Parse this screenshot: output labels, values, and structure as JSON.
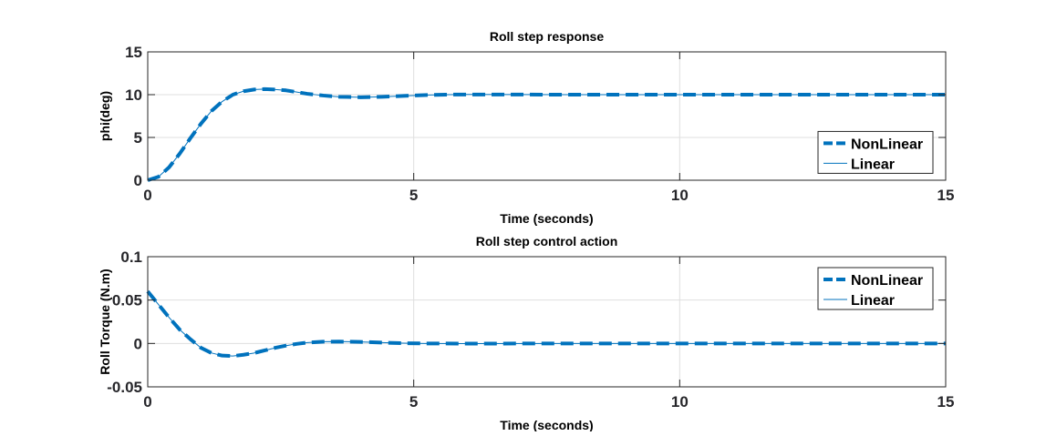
{
  "colors": {
    "series": "#0072bd",
    "axis": "#262626",
    "grid": "#dfdfdf"
  },
  "chart_data": [
    {
      "type": "line",
      "title": "Roll step response",
      "xlabel": "Time (seconds)",
      "ylabel": "phi(deg)",
      "xlim": [
        0,
        15
      ],
      "ylim": [
        0,
        15
      ],
      "xticks": [
        0,
        5,
        10,
        15
      ],
      "yticks": [
        0,
        5,
        10,
        15
      ],
      "grid": true,
      "legend_position": "right",
      "series": [
        {
          "name": "NonLinear",
          "style": "dashed",
          "x": [
            0,
            0.2,
            0.4,
            0.6,
            0.8,
            1.0,
            1.2,
            1.4,
            1.6,
            1.8,
            2.0,
            2.2,
            2.4,
            2.6,
            2.8,
            3.0,
            3.3,
            3.6,
            4.0,
            4.4,
            4.8,
            5.2,
            5.6,
            6.0,
            7.0,
            8.0,
            10.0,
            12.0,
            15.0
          ],
          "values": [
            0,
            0.4,
            1.5,
            3.1,
            4.9,
            6.6,
            8.1,
            9.2,
            10.0,
            10.4,
            10.6,
            10.65,
            10.6,
            10.5,
            10.3,
            10.1,
            9.9,
            9.75,
            9.7,
            9.75,
            9.85,
            9.95,
            10.0,
            10.02,
            10.01,
            10.0,
            10.0,
            10.0,
            10.0
          ]
        },
        {
          "name": "Linear",
          "style": "solid",
          "x": [
            0,
            0.2,
            0.4,
            0.6,
            0.8,
            1.0,
            1.2,
            1.4,
            1.6,
            1.8,
            2.0,
            2.2,
            2.4,
            2.6,
            2.8,
            3.0,
            3.3,
            3.6,
            4.0,
            4.4,
            4.8,
            5.2,
            5.6,
            6.0,
            7.0,
            8.0,
            10.0,
            12.0,
            15.0
          ],
          "values": [
            0,
            0.4,
            1.5,
            3.1,
            4.9,
            6.6,
            8.1,
            9.2,
            10.0,
            10.4,
            10.6,
            10.65,
            10.6,
            10.5,
            10.3,
            10.1,
            9.9,
            9.75,
            9.7,
            9.75,
            9.85,
            9.95,
            10.0,
            10.02,
            10.01,
            10.0,
            10.0,
            10.0,
            10.0
          ]
        }
      ]
    },
    {
      "type": "line",
      "title": "Roll step control action",
      "xlabel": "Time (seconds)",
      "ylabel": "Roll Torque (N.m)",
      "xlim": [
        0,
        15
      ],
      "ylim": [
        -0.05,
        0.1
      ],
      "xticks": [
        0,
        5,
        10,
        15
      ],
      "yticks": [
        -0.05,
        0,
        0.05,
        0.1
      ],
      "grid": true,
      "legend_position": "top-right",
      "series": [
        {
          "name": "NonLinear",
          "style": "dashed",
          "x": [
            0,
            0.2,
            0.4,
            0.6,
            0.8,
            1.0,
            1.2,
            1.4,
            1.6,
            1.8,
            2.0,
            2.2,
            2.4,
            2.6,
            2.8,
            3.0,
            3.3,
            3.6,
            4.0,
            4.4,
            4.8,
            5.2,
            6.0,
            8.0,
            10.0,
            12.0,
            15.0
          ],
          "values": [
            0.06,
            0.045,
            0.03,
            0.016,
            0.005,
            -0.005,
            -0.011,
            -0.014,
            -0.0145,
            -0.013,
            -0.011,
            -0.008,
            -0.005,
            -0.0025,
            -0.0005,
            0.001,
            0.002,
            0.0022,
            0.0018,
            0.001,
            0.0003,
            0.0,
            -0.0002,
            0.0,
            0.0,
            0.0,
            0.0
          ]
        },
        {
          "name": "Linear",
          "style": "solid",
          "x": [
            0,
            0.2,
            0.4,
            0.6,
            0.8,
            1.0,
            1.2,
            1.4,
            1.6,
            1.8,
            2.0,
            2.2,
            2.4,
            2.6,
            2.8,
            3.0,
            3.3,
            3.6,
            4.0,
            4.4,
            4.8,
            5.2,
            6.0,
            8.0,
            10.0,
            12.0,
            15.0
          ],
          "values": [
            0.06,
            0.045,
            0.03,
            0.016,
            0.005,
            -0.005,
            -0.011,
            -0.014,
            -0.0145,
            -0.013,
            -0.011,
            -0.008,
            -0.005,
            -0.0025,
            -0.0005,
            0.001,
            0.002,
            0.0022,
            0.0018,
            0.001,
            0.0003,
            0.0,
            -0.0002,
            0.0,
            0.0,
            0.0,
            0.0
          ]
        }
      ]
    }
  ]
}
